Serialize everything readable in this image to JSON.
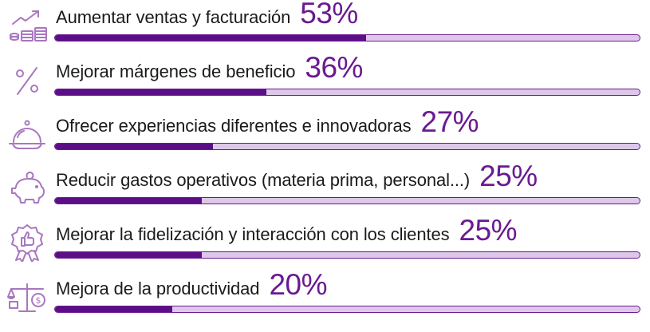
{
  "colors": {
    "accent": "#6a1a91",
    "bar_fill": "#5b0e86",
    "bar_track": "#ddc8ea",
    "icon": "#a977bf",
    "text": "#1a1a1a"
  },
  "chart_data": {
    "type": "bar",
    "orientation": "horizontal",
    "xlim": [
      0,
      100
    ],
    "categories": [
      "Aumentar ventas y facturación",
      "Mejorar márgenes de beneficio",
      "Ofrecer experiencias diferentes e innovadoras",
      "Reducir gastos operativos (materia prima, personal...)",
      "Mejorar la fidelización y interacción con los clientes",
      "Mejora de la productividad"
    ],
    "values": [
      53,
      36,
      27,
      25,
      25,
      20
    ],
    "value_labels": [
      "53%",
      "36%",
      "27%",
      "25%",
      "25%",
      "20%"
    ],
    "icons": [
      "chart-growth-icon",
      "percent-icon",
      "serving-cloche-icon",
      "piggy-bank-icon",
      "thumbs-up-badge-icon",
      "scale-money-icon"
    ]
  }
}
